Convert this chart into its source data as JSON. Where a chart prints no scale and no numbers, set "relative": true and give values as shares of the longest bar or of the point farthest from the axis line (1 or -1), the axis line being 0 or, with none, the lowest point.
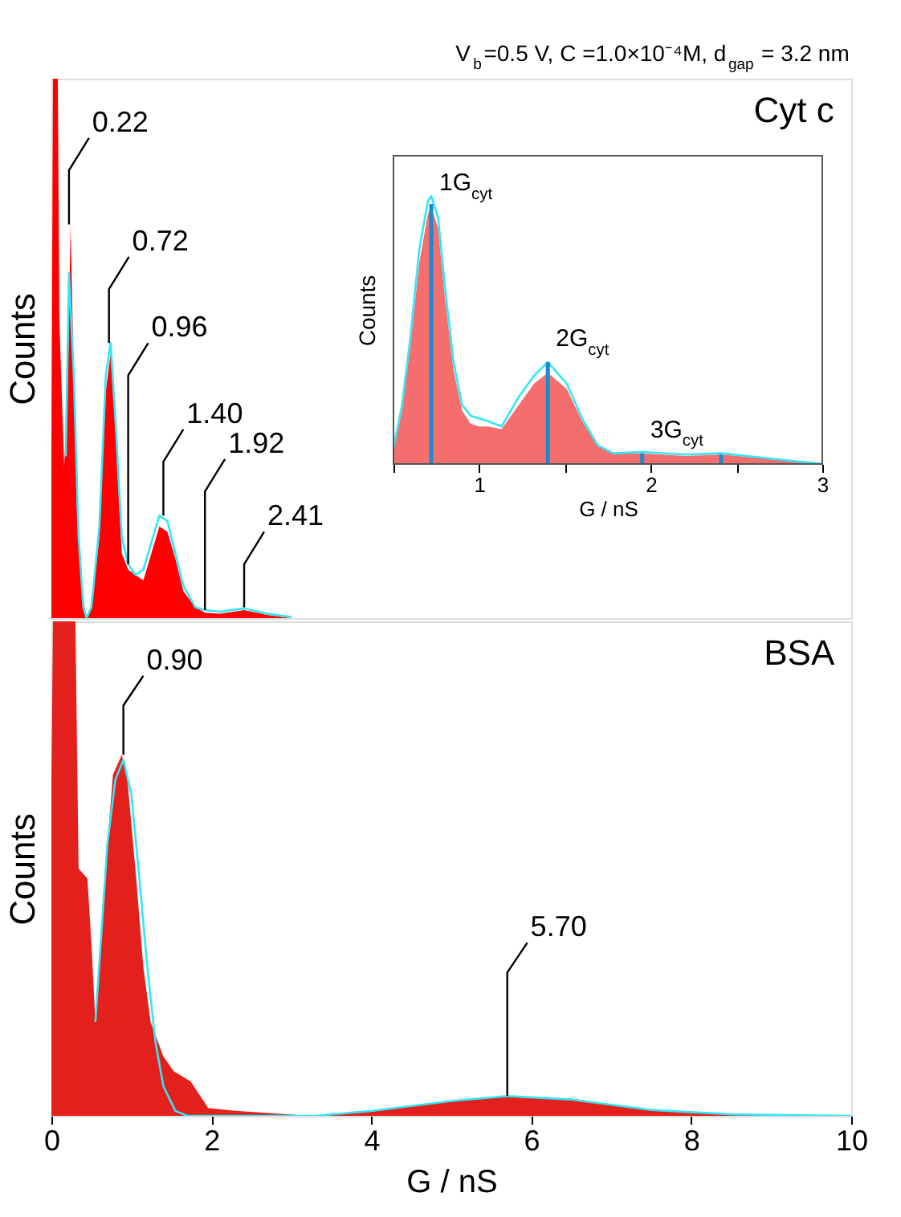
{
  "chart_data": [
    {
      "type": "area",
      "relative": true,
      "title": "V$_{b}$=0.5 V, C =1.0×10⁻⁴M, d$_{gap}$ = 3.2 nm",
      "ylabel": "Counts",
      "xlim": [
        0,
        10
      ],
      "tick_labels": false,
      "grid": false,
      "annotations": [
        "Cyt c",
        {
          "text": "0.22",
          "x": 0.22,
          "y": 0.73
        },
        {
          "text": "0.72",
          "x": 0.72,
          "y": 0.51
        },
        {
          "text": "0.96",
          "x": 0.96,
          "y": 0.1
        },
        {
          "text": "1.40",
          "x": 1.4,
          "y": 0.19
        },
        {
          "text": "1.92",
          "x": 1.92,
          "y": 0.015
        },
        {
          "text": "2.41",
          "x": 2.41,
          "y": 0.02
        }
      ],
      "series": [
        {
          "color": "#ff0000",
          "x": [
            0,
            0.02,
            0.08,
            0.1,
            0.16,
            0.2,
            0.24,
            0.28,
            0.32,
            0.38,
            0.44,
            0.5,
            0.6,
            0.68,
            0.74,
            0.8,
            0.88,
            0.96,
            1.05,
            1.15,
            1.25,
            1.35,
            1.45,
            1.55,
            1.65,
            1.8,
            1.92,
            2.1,
            2.41,
            2.7,
            3.0,
            10
          ],
          "values": [
            0.3,
            1.0,
            1.0,
            0.55,
            0.28,
            0.4,
            0.73,
            0.45,
            0.2,
            0.05,
            0.0,
            0.02,
            0.15,
            0.42,
            0.49,
            0.35,
            0.12,
            0.09,
            0.08,
            0.07,
            0.12,
            0.17,
            0.16,
            0.11,
            0.05,
            0.02,
            0.01,
            0.008,
            0.015,
            0.006,
            0.0,
            0.0
          ]
        },
        {
          "type": "line",
          "color": "#33e6f5",
          "x": [
            0.18,
            0.22,
            0.28,
            0.34,
            0.4,
            0.44,
            0.5,
            0.6,
            0.68,
            0.74,
            0.8,
            0.88,
            0.96,
            1.05,
            1.15,
            1.25,
            1.35,
            1.45,
            1.55,
            1.65,
            1.8,
            1.92,
            2.1,
            2.41,
            2.7,
            3.0
          ],
          "values": [
            0.3,
            0.64,
            0.45,
            0.15,
            0.02,
            0.0,
            0.02,
            0.17,
            0.45,
            0.51,
            0.37,
            0.15,
            0.1,
            0.08,
            0.09,
            0.14,
            0.19,
            0.18,
            0.12,
            0.06,
            0.02,
            0.015,
            0.012,
            0.018,
            0.008,
            0.002
          ]
        }
      ]
    },
    {
      "type": "area",
      "relative": true,
      "xlabel": "G / nS",
      "ylabel": "Counts",
      "xlim": [
        0.5,
        3
      ],
      "xticks": [
        {
          "value": 0.5,
          "label": null
        },
        1,
        {
          "value": 1.5,
          "label": null
        },
        2,
        {
          "value": 2.5,
          "label": null
        },
        3
      ],
      "tick_labels": "x",
      "grid": false,
      "annotations": [
        {
          "text": "1G$_{cyt}$",
          "x": 0.72,
          "y": 0.96
        },
        {
          "text": "2G$_{cyt}$",
          "x": 1.4,
          "y": 0.38
        },
        {
          "text": "3G$_{cyt}$",
          "x": 1.95,
          "y": 0.04
        }
      ],
      "series": [
        {
          "color": "#f25555",
          "x": [
            0.5,
            0.55,
            0.6,
            0.65,
            0.7,
            0.72,
            0.76,
            0.8,
            0.85,
            0.9,
            0.95,
            1.0,
            1.05,
            1.13,
            1.23,
            1.32,
            1.4,
            1.51,
            1.6,
            1.69,
            1.78,
            1.95,
            2.2,
            2.41,
            2.7,
            3.0
          ],
          "values": [
            0.05,
            0.2,
            0.45,
            0.75,
            0.93,
            0.96,
            0.88,
            0.62,
            0.35,
            0.2,
            0.15,
            0.14,
            0.14,
            0.13,
            0.22,
            0.3,
            0.34,
            0.28,
            0.16,
            0.07,
            0.04,
            0.04,
            0.03,
            0.035,
            0.02,
            0.0
          ]
        },
        {
          "type": "line",
          "color": "#33e6f5",
          "x": [
            0.5,
            0.55,
            0.6,
            0.65,
            0.7,
            0.72,
            0.76,
            0.8,
            0.85,
            0.9,
            0.95,
            1.0,
            1.05,
            1.13,
            1.23,
            1.32,
            1.4,
            1.51,
            1.6,
            1.69,
            1.78,
            1.95,
            2.2,
            2.41,
            2.7,
            3.0
          ],
          "values": [
            0.06,
            0.22,
            0.48,
            0.8,
            0.98,
            1.0,
            0.92,
            0.66,
            0.38,
            0.22,
            0.18,
            0.17,
            0.16,
            0.14,
            0.25,
            0.33,
            0.38,
            0.3,
            0.17,
            0.07,
            0.04,
            0.045,
            0.035,
            0.04,
            0.02,
            0.0
          ]
        },
        {
          "type": "bar",
          "color": "#1e88d0",
          "x": [
            0.72,
            1.4,
            1.95,
            2.41
          ],
          "values": [
            0.97,
            0.38,
            0.04,
            0.035
          ]
        }
      ]
    },
    {
      "type": "area",
      "relative": true,
      "xlabel": "G / nS",
      "ylabel": "Counts",
      "xlim": [
        0,
        10
      ],
      "xticks": [
        0,
        2,
        4,
        6,
        8,
        10
      ],
      "tick_labels": "x",
      "grid": false,
      "annotations": [
        "BSA",
        {
          "text": "0.90",
          "x": 0.9,
          "y": 0.73
        },
        {
          "text": "5.70",
          "x": 5.7,
          "y": 0.04
        }
      ],
      "series": [
        {
          "color": "#e3201b",
          "x": [
            0,
            0.02,
            0.05,
            0.3,
            0.34,
            0.45,
            0.5,
            0.55,
            0.65,
            0.77,
            0.88,
            0.95,
            1.06,
            1.15,
            1.24,
            1.4,
            1.53,
            1.74,
            1.96,
            2.3,
            3.25,
            4,
            5,
            5.7,
            6.5,
            7.5,
            8,
            9,
            10
          ],
          "values": [
            0.68,
            1.0,
            1.0,
            1.0,
            0.5,
            0.48,
            0.35,
            0.19,
            0.45,
            0.69,
            0.73,
            0.68,
            0.48,
            0.3,
            0.19,
            0.12,
            0.09,
            0.07,
            0.016,
            0.01,
            0.0,
            0.01,
            0.03,
            0.04,
            0.035,
            0.012,
            0.006,
            0.002,
            0.0
          ]
        },
        {
          "type": "line",
          "color": "#33e6f5",
          "x": [
            0.55,
            0.7,
            0.8,
            0.9,
            1.0,
            1.1,
            1.2,
            1.3,
            1.4,
            1.55,
            1.7,
            3.3,
            4,
            5,
            5.7,
            6.5,
            7.5,
            8.5,
            10
          ],
          "values": [
            0.19,
            0.55,
            0.68,
            0.72,
            0.65,
            0.48,
            0.3,
            0.15,
            0.06,
            0.01,
            0,
            0,
            0.01,
            0.03,
            0.04,
            0.033,
            0.012,
            0.003,
            0
          ]
        }
      ]
    }
  ]
}
